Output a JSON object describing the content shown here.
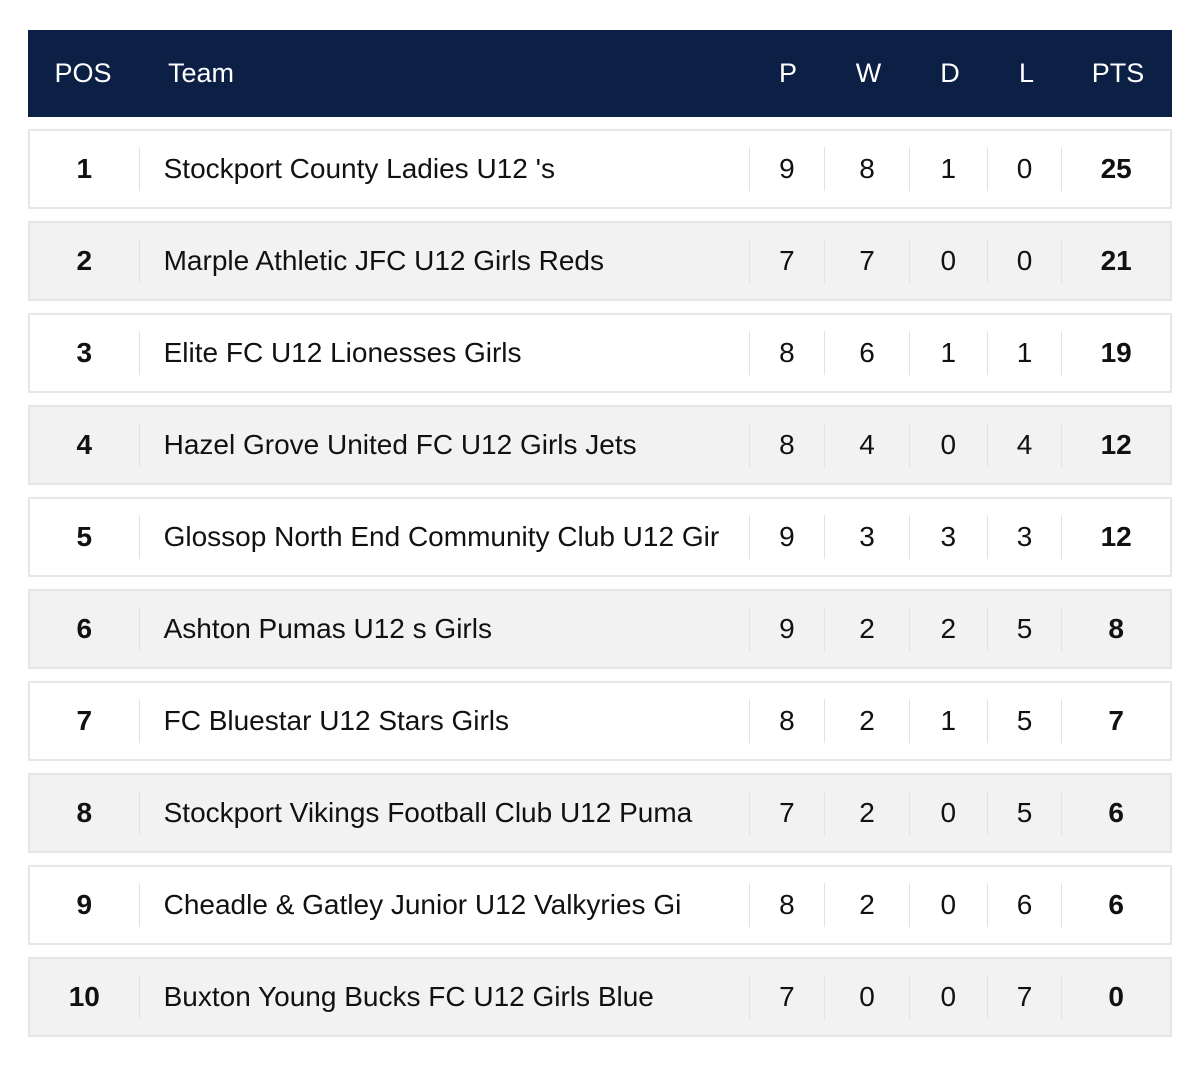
{
  "header": {
    "pos": "POS",
    "team": "Team",
    "p": "P",
    "w": "W",
    "d": "D",
    "l": "L",
    "pts": "PTS"
  },
  "rows": [
    {
      "pos": "1",
      "team": "Stockport County Ladies U12 's",
      "p": "9",
      "w": "8",
      "d": "1",
      "l": "0",
      "pts": "25"
    },
    {
      "pos": "2",
      "team": "Marple Athletic JFC U12 Girls Reds",
      "p": "7",
      "w": "7",
      "d": "0",
      "l": "0",
      "pts": "21"
    },
    {
      "pos": "3",
      "team": "Elite FC U12 Lionesses Girls",
      "p": "8",
      "w": "6",
      "d": "1",
      "l": "1",
      "pts": "19"
    },
    {
      "pos": "4",
      "team": "Hazel Grove United FC U12 Girls Jets",
      "p": "8",
      "w": "4",
      "d": "0",
      "l": "4",
      "pts": "12"
    },
    {
      "pos": "5",
      "team": "Glossop North End Community Club U12 Gir",
      "p": "9",
      "w": "3",
      "d": "3",
      "l": "3",
      "pts": "12"
    },
    {
      "pos": "6",
      "team": "Ashton Pumas U12 s Girls",
      "p": "9",
      "w": "2",
      "d": "2",
      "l": "5",
      "pts": "8"
    },
    {
      "pos": "7",
      "team": "FC Bluestar U12 Stars Girls",
      "p": "8",
      "w": "2",
      "d": "1",
      "l": "5",
      "pts": "7"
    },
    {
      "pos": "8",
      "team": "Stockport Vikings Football Club U12 Puma",
      "p": "7",
      "w": "2",
      "d": "0",
      "l": "5",
      "pts": "6"
    },
    {
      "pos": "9",
      "team": "Cheadle & Gatley Junior U12 Valkyries Gi",
      "p": "8",
      "w": "2",
      "d": "0",
      "l": "6",
      "pts": "6"
    },
    {
      "pos": "10",
      "team": "Buxton Young Bucks FC U12 Girls Blue",
      "p": "7",
      "w": "0",
      "d": "0",
      "l": "7",
      "pts": "0"
    }
  ],
  "colors": {
    "header_bg": "#0c1f45",
    "header_text": "#ffffff",
    "row_alt_bg": "#f2f2f2",
    "row_border": "#e6e6e6"
  }
}
